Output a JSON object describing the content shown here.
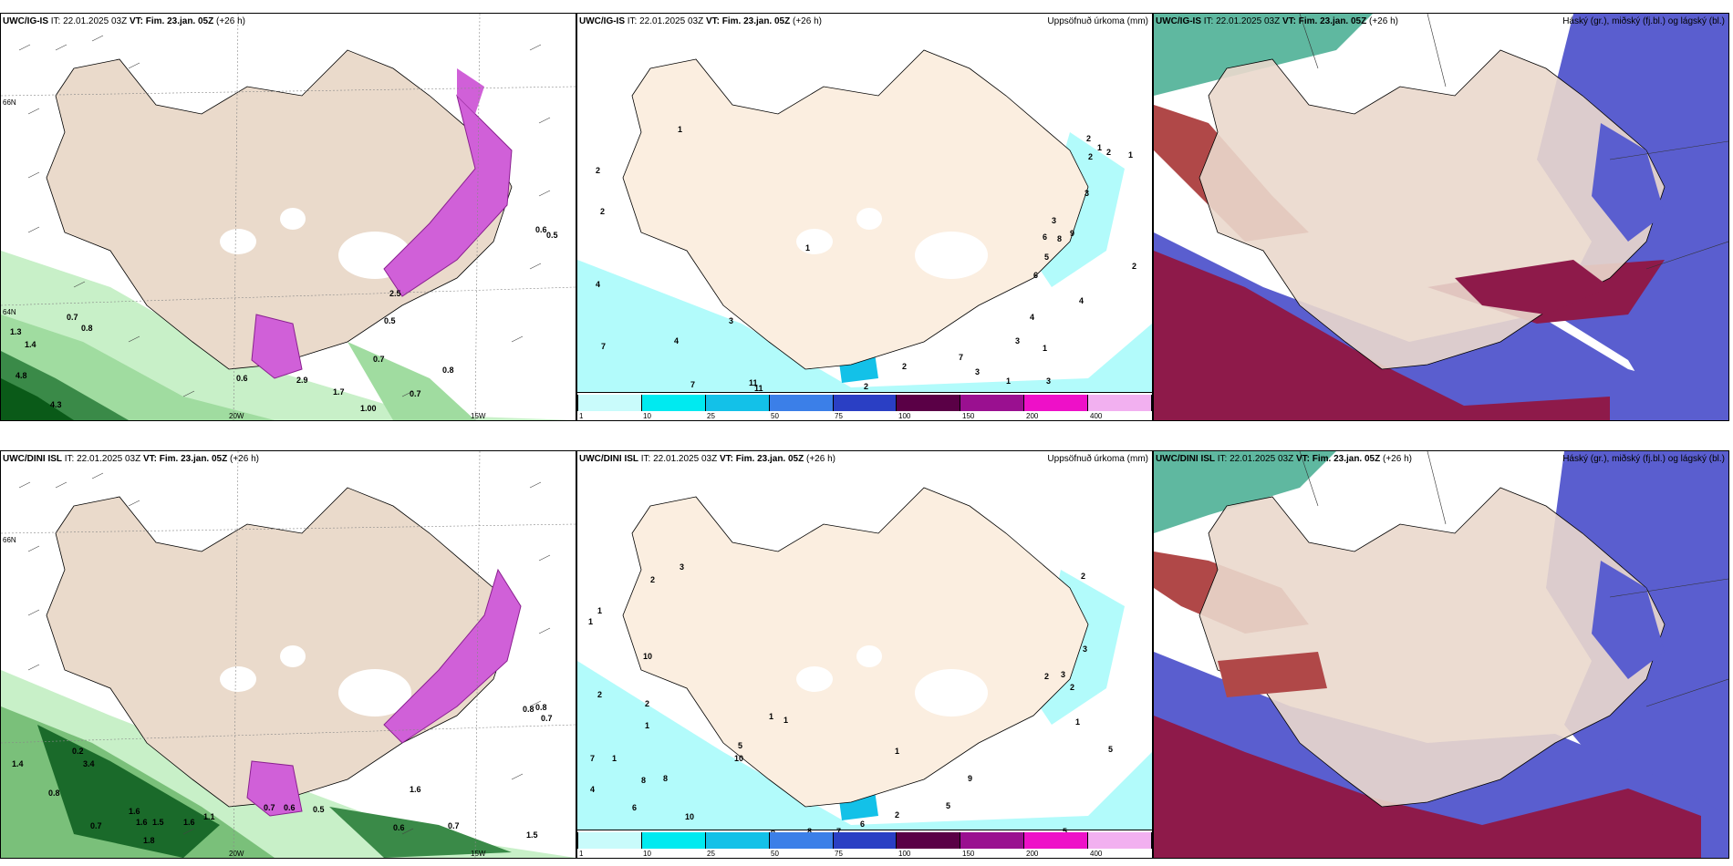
{
  "rows": [
    {
      "model": "UWC/IG-IS",
      "panels": [
        {
          "it": "IT: 22.01.2025 03Z",
          "vt_label": "VT:",
          "vt": "Fim. 23.jan. 05Z",
          "lead": "(+26 h)",
          "right": ""
        },
        {
          "it": "IT: 22.01.2025 03Z",
          "vt_label": "VT:",
          "vt": "Fim. 23.jan. 05Z",
          "lead": "(+26 h)",
          "right": "Uppsöfnuð úrkoma (mm)"
        },
        {
          "it": "IT: 22.01.2025 03Z",
          "vt_label": "VT:",
          "vt": "Fim. 23.jan. 05Z",
          "lead": "(+26 h)",
          "right": "Háský (gr.), miðský (fj.bl.) og lágský (bl.)"
        }
      ],
      "p1_labels": [
        "0.7",
        "0.8",
        "1.3",
        "1.4",
        "4.8",
        "4.3",
        "0.6",
        "2.9",
        "1.7",
        "0.7",
        "1.00",
        "0.7",
        "0.8",
        "2.5",
        "0.5",
        "0.6",
        "0.5"
      ],
      "p2_labels": [
        "1",
        "2",
        "2",
        "4",
        "4",
        "7",
        "7",
        "3",
        "11",
        "11",
        "1",
        "2",
        "2",
        "3",
        "1",
        "2",
        "3",
        "4",
        "6",
        "8",
        "9",
        "5",
        "6",
        "3",
        "7",
        "2",
        "1",
        "4",
        "1",
        "2",
        "3",
        "1",
        "3",
        "2"
      ]
    },
    {
      "model": "UWC/DINI ISL",
      "panels": [
        {
          "it": "IT: 22.01.2025 03Z",
          "vt_label": "VT:",
          "vt": "Fim. 23.jan. 05Z",
          "lead": "(+26 h)",
          "right": ""
        },
        {
          "it": "IT: 22.01.2025 03Z",
          "vt_label": "VT:",
          "vt": "Fim. 23.jan. 05Z",
          "lead": "(+26 h)",
          "right": "Uppsöfnuð úrkoma (mm)"
        },
        {
          "it": "IT: 22.01.2025 03Z",
          "vt_label": "VT:",
          "vt": "Fim. 23.jan. 05Z",
          "lead": "(+26 h)",
          "right": "Háský (gr.), miðský (fj.bl.) og lágský (bl.)"
        }
      ],
      "p1_labels": [
        "1.4",
        "0.2",
        "3.4",
        "0.8",
        "0.7",
        "1.6",
        "1.6",
        "1.5",
        "1.6",
        "1.1",
        "1.8",
        "0.7",
        "0.6",
        "0.5",
        "1.6",
        "0.6",
        "0.7",
        "1.5",
        "0.8",
        "0.8",
        "0.7"
      ],
      "p2_labels": [
        "3",
        "2",
        "1",
        "1",
        "10",
        "2",
        "2",
        "1",
        "1",
        "7",
        "8",
        "8",
        "4",
        "6",
        "10",
        "5",
        "10",
        "1",
        "1",
        "1",
        "9",
        "7",
        "8",
        "6",
        "2",
        "5",
        "9",
        "5",
        "2",
        "3",
        "2",
        "1",
        "5",
        "3",
        "2"
      ]
    }
  ],
  "axes": {
    "lon_labels": [
      "20W",
      "15W"
    ],
    "lat_labels": [
      "66N",
      "64N"
    ]
  },
  "colorbar": {
    "labels": [
      "1",
      "10",
      "25",
      "50",
      "75",
      "100",
      "150",
      "200",
      "400"
    ],
    "colors": [
      "#c9fbfb",
      "#00eaf0",
      "#13c1e8",
      "#3b7fe8",
      "#2a3fc4",
      "#5a0046",
      "#9a1090",
      "#ee10c8",
      "#f2b0f0"
    ]
  },
  "colors": {
    "land": "#f5e6d3",
    "land_tan": "#eadacb",
    "precip_light": "#b2fbfb",
    "precip_green": "#a8e6a8",
    "precip_dark": "#0a5a18",
    "magenta": "#d060d8",
    "cloud_high": "#3fa890",
    "cloud_mid": "#8a1a40",
    "cloud_low": "#4a4ec8"
  }
}
